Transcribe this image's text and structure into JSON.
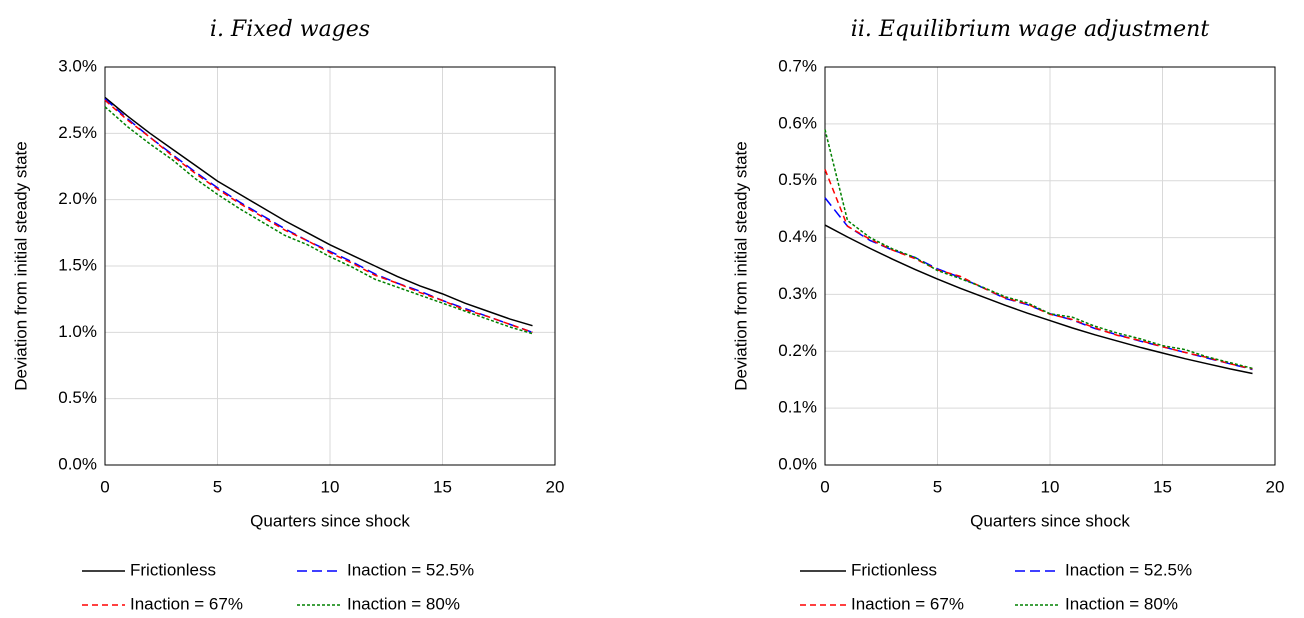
{
  "chart_data": [
    {
      "type": "line",
      "title": "i. Fixed wages",
      "x_label": "Quarters since shock",
      "y_label": "Deviation from initial steady state",
      "x": [
        0,
        1,
        2,
        3,
        4,
        5,
        6,
        7,
        8,
        9,
        10,
        11,
        12,
        13,
        14,
        15,
        16,
        17,
        18,
        19
      ],
      "xlim": [
        0,
        20
      ],
      "xticks": [
        0,
        5,
        10,
        15,
        20
      ],
      "ylim": [
        0,
        3.0
      ],
      "yticks": [
        {
          "value": 0,
          "label": "0.0%"
        },
        {
          "value": 0.5,
          "label": "0.5%"
        },
        {
          "value": 1.0,
          "label": "1.0%"
        },
        {
          "value": 1.5,
          "label": "1.5%"
        },
        {
          "value": 2.0,
          "label": "2.0%"
        },
        {
          "value": 2.5,
          "label": "2.5%"
        },
        {
          "value": 3.0,
          "label": "3.0%"
        }
      ],
      "grid": true,
      "legend": "bottom",
      "series": [
        {
          "name": "Frictionless",
          "color": "#000000",
          "dash": "solid",
          "values": [
            2.77,
            2.63,
            2.5,
            2.38,
            2.26,
            2.14,
            2.04,
            1.94,
            1.84,
            1.75,
            1.66,
            1.58,
            1.5,
            1.42,
            1.35,
            1.29,
            1.22,
            1.16,
            1.1,
            1.05
          ]
        },
        {
          "name": "Inaction = 52.5%",
          "color": "#0000ff",
          "dash": "dashed",
          "values": [
            2.76,
            2.61,
            2.47,
            2.34,
            2.21,
            2.09,
            1.98,
            1.88,
            1.78,
            1.69,
            1.61,
            1.53,
            1.44,
            1.37,
            1.31,
            1.24,
            1.18,
            1.12,
            1.06,
            1.0
          ]
        },
        {
          "name": "Inaction = 67%",
          "color": "#ff0000",
          "dash": "dashed-short",
          "values": [
            2.75,
            2.6,
            2.47,
            2.33,
            2.2,
            2.08,
            1.97,
            1.87,
            1.77,
            1.69,
            1.6,
            1.52,
            1.43,
            1.37,
            1.3,
            1.24,
            1.17,
            1.12,
            1.06,
            1.0
          ]
        },
        {
          "name": "Inaction = 80%",
          "color": "#008000",
          "dash": "dotted",
          "values": [
            2.7,
            2.55,
            2.42,
            2.3,
            2.16,
            2.04,
            1.93,
            1.83,
            1.73,
            1.66,
            1.57,
            1.49,
            1.4,
            1.34,
            1.28,
            1.22,
            1.16,
            1.1,
            1.04,
            0.99
          ]
        }
      ]
    },
    {
      "type": "line",
      "title": "ii. Equilibrium wage adjustment",
      "x_label": "Quarters since shock",
      "y_label": "Deviation from initial steady state",
      "x": [
        0,
        1,
        2,
        3,
        4,
        5,
        6,
        7,
        8,
        9,
        10,
        11,
        12,
        13,
        14,
        15,
        16,
        17,
        18,
        19
      ],
      "xlim": [
        0,
        20
      ],
      "xticks": [
        0,
        5,
        10,
        15,
        20
      ],
      "ylim": [
        0,
        0.7
      ],
      "yticks": [
        {
          "value": 0,
          "label": "0.0%"
        },
        {
          "value": 0.1,
          "label": "0.1%"
        },
        {
          "value": 0.2,
          "label": "0.2%"
        },
        {
          "value": 0.3,
          "label": "0.3%"
        },
        {
          "value": 0.4,
          "label": "0.4%"
        },
        {
          "value": 0.5,
          "label": "0.5%"
        },
        {
          "value": 0.6,
          "label": "0.6%"
        },
        {
          "value": 0.7,
          "label": "0.7%"
        }
      ],
      "grid": true,
      "legend": "bottom",
      "series": [
        {
          "name": "Frictionless",
          "color": "#000000",
          "dash": "solid",
          "values": [
            0.422,
            0.401,
            0.381,
            0.362,
            0.344,
            0.327,
            0.311,
            0.296,
            0.281,
            0.267,
            0.254,
            0.241,
            0.229,
            0.218,
            0.207,
            0.197,
            0.187,
            0.178,
            0.169,
            0.161
          ]
        },
        {
          "name": "Inaction = 52.5%",
          "color": "#0000ff",
          "dash": "dashed",
          "values": [
            0.47,
            0.42,
            0.395,
            0.378,
            0.365,
            0.345,
            0.33,
            0.312,
            0.293,
            0.282,
            0.266,
            0.255,
            0.24,
            0.229,
            0.218,
            0.208,
            0.198,
            0.188,
            0.178,
            0.168
          ]
        },
        {
          "name": "Inaction = 67%",
          "color": "#ff0000",
          "dash": "dashed-short",
          "values": [
            0.52,
            0.42,
            0.397,
            0.378,
            0.363,
            0.343,
            0.332,
            0.312,
            0.294,
            0.283,
            0.265,
            0.256,
            0.241,
            0.228,
            0.219,
            0.208,
            0.198,
            0.189,
            0.178,
            0.169
          ]
        },
        {
          "name": "Inaction = 80%",
          "color": "#008000",
          "dash": "dotted",
          "values": [
            0.59,
            0.43,
            0.4,
            0.38,
            0.365,
            0.342,
            0.328,
            0.313,
            0.296,
            0.285,
            0.266,
            0.26,
            0.244,
            0.232,
            0.222,
            0.21,
            0.203,
            0.19,
            0.18,
            0.17
          ]
        }
      ]
    }
  ]
}
